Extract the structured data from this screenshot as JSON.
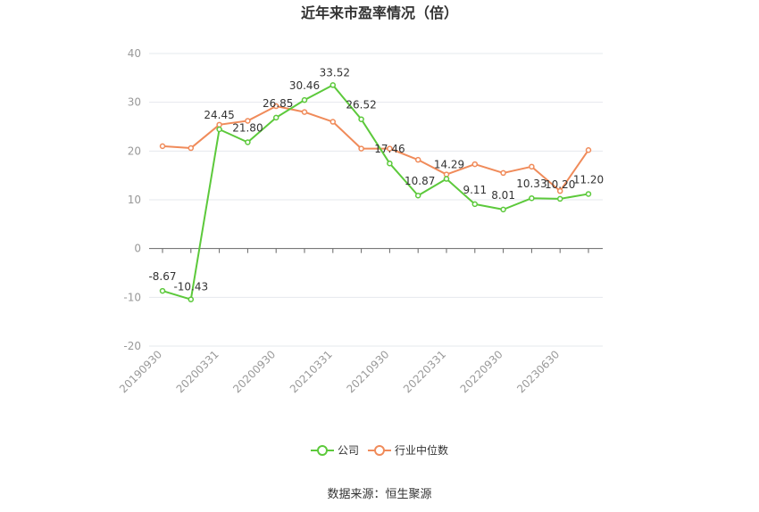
{
  "chart_data": {
    "type": "line",
    "title": "近年来市盈率情况（倍）",
    "xlabel": "",
    "ylabel": "",
    "ylim": [
      -20,
      40
    ],
    "yticks": [
      40,
      30,
      20,
      10,
      0,
      -10,
      -20
    ],
    "grid": true,
    "legend_position": "bottom",
    "x": [
      "20190930",
      "20191231",
      "20200331",
      "20200630",
      "20200930",
      "20201231",
      "20210331",
      "20210630",
      "20210930",
      "20211231",
      "20220331",
      "20220630",
      "20220930",
      "20221231",
      "20230630",
      "20230930"
    ],
    "x_tick_labels": [
      "20190930",
      "20200331",
      "20200930",
      "20210331",
      "20210930",
      "20220331",
      "20220930",
      "20230630"
    ],
    "series": [
      {
        "name": "公司",
        "color": "#5cc93b",
        "values": [
          -8.67,
          -10.43,
          24.45,
          21.8,
          26.85,
          30.46,
          33.52,
          26.52,
          17.46,
          10.87,
          14.29,
          9.11,
          8.01,
          10.33,
          10.2,
          11.2
        ],
        "labels": [
          "-8.67",
          "-10.43",
          "24.45",
          "21.80",
          "26.85",
          "30.46",
          "33.52",
          "26.52",
          "17.46",
          "10.87",
          "14.29",
          "9.11",
          "8.01",
          "10.33",
          "10.20",
          "11.20"
        ]
      },
      {
        "name": "行业中位数",
        "color": "#f08b5a",
        "values": [
          21.0,
          20.6,
          25.4,
          26.2,
          29.2,
          28.0,
          26.0,
          20.5,
          20.5,
          18.2,
          15.2,
          17.3,
          15.5,
          16.8,
          11.8,
          20.2
        ]
      }
    ]
  },
  "source": "数据来源：恒生聚源"
}
